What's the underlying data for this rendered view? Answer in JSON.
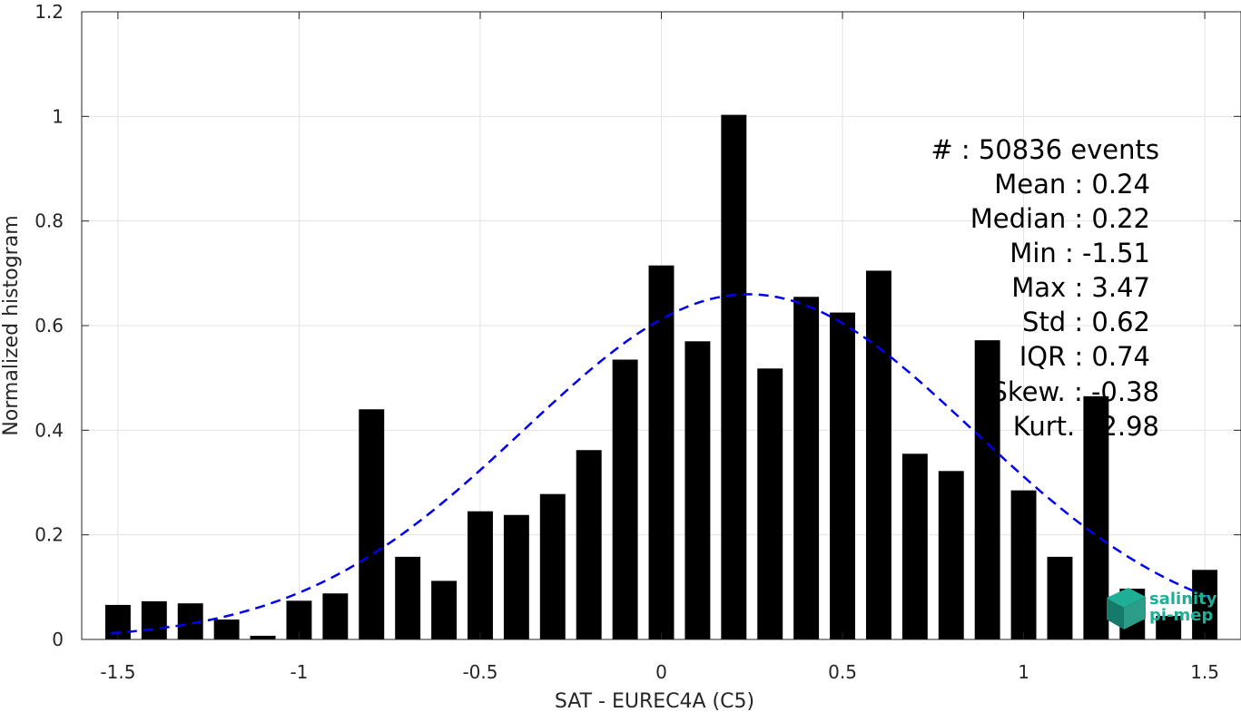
{
  "chart_data": {
    "type": "bar",
    "xlabel": "SAT - EUREC4A (C5)",
    "ylabel": "Normalized histogram",
    "xlim": [
      -1.6,
      1.6
    ],
    "ylim": [
      0,
      1.2
    ],
    "xticks": [
      -1.5,
      -1,
      -0.5,
      0,
      0.5,
      1,
      1.5
    ],
    "xtick_labels": [
      "-1.5",
      "-1",
      "-0.5",
      "0",
      "0.5",
      "1",
      "1.5"
    ],
    "yticks": [
      0,
      0.2,
      0.4,
      0.6,
      0.8,
      1,
      1.2
    ],
    "ytick_labels": [
      "0",
      "0.2",
      "0.4",
      "0.6",
      "0.8",
      "1",
      "1.2"
    ],
    "grid": true,
    "bar_color": "#000000",
    "bars": {
      "x": [
        -1.5,
        -1.4,
        -1.3,
        -1.2,
        -1.1,
        -1.0,
        -0.9,
        -0.8,
        -0.7,
        -0.6,
        -0.5,
        -0.4,
        -0.3,
        -0.2,
        -0.1,
        0.0,
        0.1,
        0.2,
        0.3,
        0.4,
        0.5,
        0.6,
        0.7,
        0.8,
        0.9,
        1.0,
        1.1,
        1.2,
        1.3,
        1.4,
        1.5
      ],
      "values": [
        0.066,
        0.073,
        0.069,
        0.038,
        0.007,
        0.074,
        0.088,
        0.44,
        0.158,
        0.112,
        0.245,
        0.238,
        0.278,
        0.362,
        0.535,
        0.715,
        0.57,
        1.003,
        0.518,
        0.655,
        0.625,
        0.705,
        0.355,
        0.322,
        0.572,
        0.285,
        0.158,
        0.465,
        0.097,
        0.045,
        0.133
      ]
    },
    "fit_curve": {
      "style": "dashed",
      "color": "#0000ee",
      "mean": 0.24,
      "std": 0.62,
      "peak": 0.66,
      "x_range": [
        -1.52,
        1.52
      ]
    },
    "annotations": [
      "#  : 50836 events",
      "Mean : 0.24",
      "Median : 0.22",
      "Min : -1.51",
      "Max : 3.47",
      "Std : 0.62",
      "IQR : 0.74",
      "Skew. : -0.38",
      "Kurt. : 2.98"
    ]
  },
  "logo": {
    "line1": "salinity",
    "line2": "pi-mep",
    "color": "#1fae96"
  }
}
